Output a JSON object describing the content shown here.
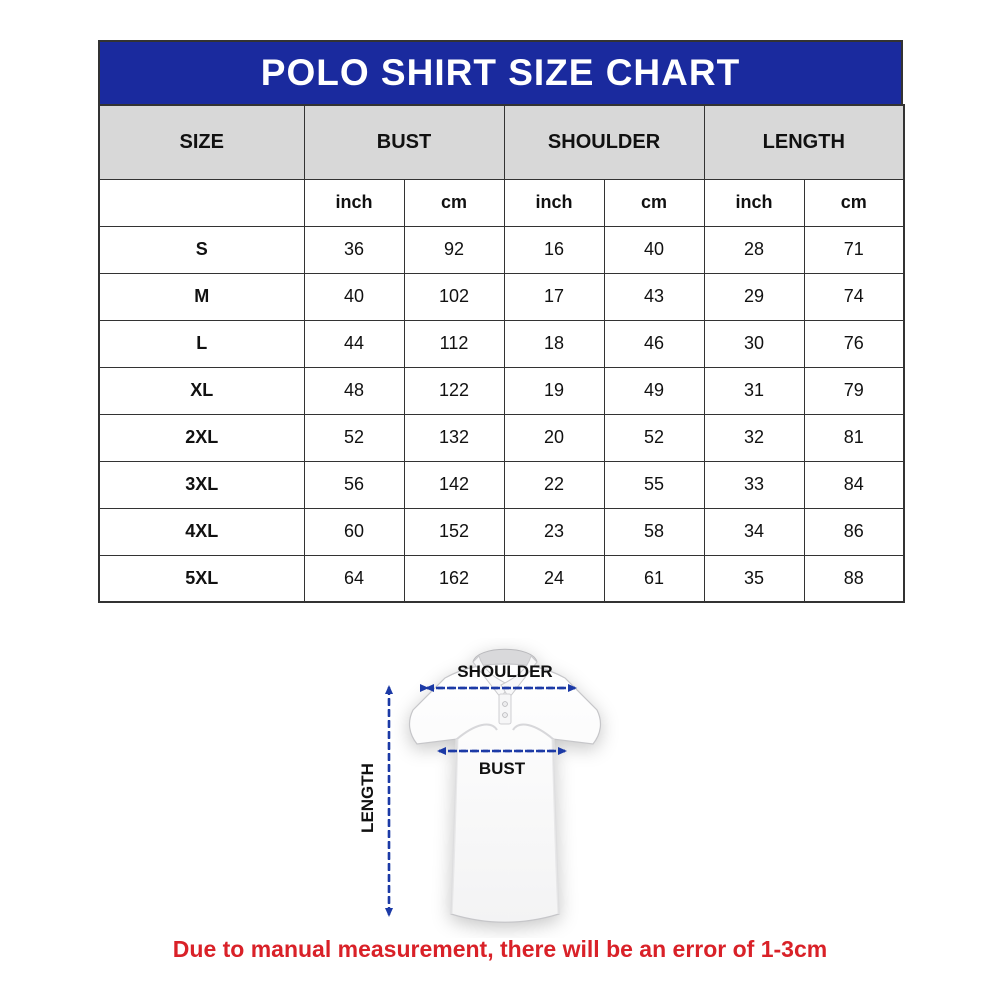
{
  "title": "POLO SHIRT SIZE CHART",
  "table": {
    "size_column_label": "SIZE",
    "groups": [
      {
        "label": "BUST",
        "units": [
          "inch",
          "cm"
        ]
      },
      {
        "label": "SHOULDER",
        "units": [
          "inch",
          "cm"
        ]
      },
      {
        "label": "LENGTH",
        "units": [
          "inch",
          "cm"
        ]
      }
    ],
    "rows": [
      {
        "size": "S",
        "values": [
          "36",
          "92",
          "16",
          "40",
          "28",
          "71"
        ]
      },
      {
        "size": "M",
        "values": [
          "40",
          "102",
          "17",
          "43",
          "29",
          "74"
        ]
      },
      {
        "size": "L",
        "values": [
          "44",
          "112",
          "18",
          "46",
          "30",
          "76"
        ]
      },
      {
        "size": "XL",
        "values": [
          "48",
          "122",
          "19",
          "49",
          "31",
          "79"
        ]
      },
      {
        "size": "2XL",
        "values": [
          "52",
          "132",
          "20",
          "52",
          "32",
          "81"
        ]
      },
      {
        "size": "3XL",
        "values": [
          "56",
          "142",
          "22",
          "55",
          "33",
          "84"
        ]
      },
      {
        "size": "4XL",
        "values": [
          "60",
          "152",
          "23",
          "58",
          "34",
          "86"
        ]
      },
      {
        "size": "5XL",
        "values": [
          "64",
          "162",
          "24",
          "61",
          "35",
          "88"
        ]
      }
    ]
  },
  "chart_data": {
    "type": "table",
    "title": "POLO SHIRT SIZE CHART",
    "columns": [
      "SIZE",
      "BUST inch",
      "BUST cm",
      "SHOULDER inch",
      "SHOULDER cm",
      "LENGTH inch",
      "LENGTH cm"
    ],
    "rows": [
      [
        "S",
        36,
        92,
        16,
        40,
        28,
        71
      ],
      [
        "M",
        40,
        102,
        17,
        43,
        29,
        74
      ],
      [
        "L",
        44,
        112,
        18,
        46,
        30,
        76
      ],
      [
        "XL",
        48,
        122,
        19,
        49,
        31,
        79
      ],
      [
        "2XL",
        52,
        132,
        20,
        52,
        32,
        81
      ],
      [
        "3XL",
        56,
        142,
        22,
        55,
        33,
        84
      ],
      [
        "4XL",
        60,
        152,
        23,
        58,
        34,
        86
      ],
      [
        "5XL",
        64,
        162,
        24,
        61,
        35,
        88
      ]
    ]
  },
  "diagram": {
    "shoulder_label": "SHOULDER",
    "bust_label": "BUST",
    "length_label": "LENGTH"
  },
  "note": "Due to manual measurement, there will be an error of 1-3cm",
  "colors": {
    "title_bar_bg": "#1a2a9e",
    "title_text": "#ffffff",
    "group_header_bg": "#d8d8d8",
    "border": "#333333",
    "arrow": "#1c3aa6",
    "note_text": "#d92128"
  }
}
